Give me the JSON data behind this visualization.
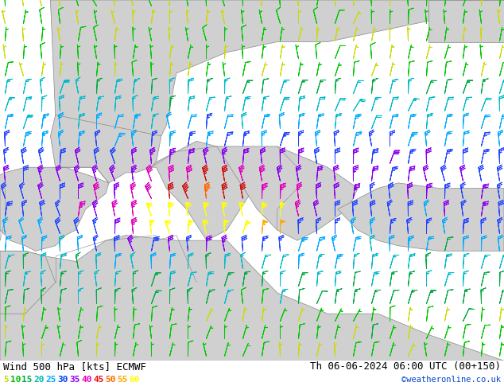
{
  "title_left": "Wind 500 hPa [kts] ECMWF",
  "title_right": "Th 06-06-2024 06:00 UTC (00+150)",
  "credit": "©weatheronline.co.uk",
  "background_color": "#c8f0a0",
  "land_color": "#d0d0d0",
  "border_color": "#888888",
  "legend_values": [
    5,
    10,
    15,
    20,
    25,
    30,
    35,
    40,
    45,
    50,
    55,
    60
  ],
  "legend_colors": [
    "#c8dc00",
    "#00c000",
    "#00aa44",
    "#00bbaa",
    "#00aaff",
    "#0044ee",
    "#9900ee",
    "#ee00bb",
    "#ee1111",
    "#ff6600",
    "#ffaa00",
    "#ffff00"
  ],
  "font_size_title": 9,
  "font_size_legend": 8,
  "font_size_credit": 7,
  "xlim": [
    -7.5,
    42.5
  ],
  "ylim": [
    25.5,
    60.0
  ]
}
